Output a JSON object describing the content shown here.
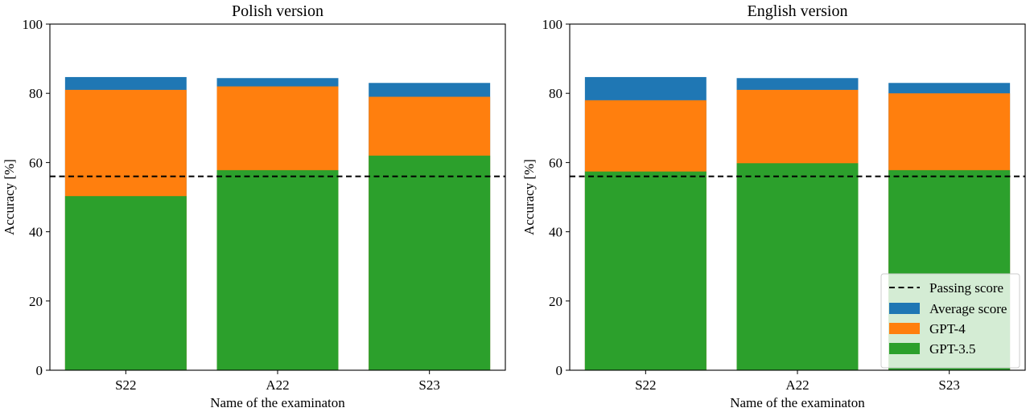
{
  "chart_data": [
    {
      "type": "bar",
      "stacked": "overlay",
      "title": "Polish version",
      "xlabel": "Name of the examinaton",
      "ylabel": "Accuracy [%]",
      "ylim": [
        0,
        100
      ],
      "yticks": [
        "0",
        "20",
        "40",
        "60",
        "80",
        "100"
      ],
      "categories": [
        "S22",
        "A22",
        "S23"
      ],
      "series": [
        {
          "name": "Average score",
          "color": "#1f77b4",
          "values": [
            84.7,
            84.4,
            83.0
          ]
        },
        {
          "name": "GPT-4",
          "color": "#ff7f0e",
          "values": [
            81.0,
            82.0,
            79.0
          ]
        },
        {
          "name": "GPT-3.5",
          "color": "#2ca02c",
          "values": [
            50.3,
            57.8,
            62.0
          ]
        }
      ],
      "passing_score": {
        "name": "Passing score",
        "value": 56
      },
      "legend": false,
      "grid": false
    },
    {
      "type": "bar",
      "stacked": "overlay",
      "title": "English version",
      "xlabel": "Name of the examinaton",
      "ylabel": "Accuracy [%]",
      "ylim": [
        0,
        100
      ],
      "yticks": [
        "0",
        "20",
        "40",
        "60",
        "80",
        "100"
      ],
      "categories": [
        "S22",
        "A22",
        "S23"
      ],
      "series": [
        {
          "name": "Average score",
          "color": "#1f77b4",
          "values": [
            84.7,
            84.4,
            83.0
          ]
        },
        {
          "name": "GPT-4",
          "color": "#ff7f0e",
          "values": [
            78.0,
            81.0,
            80.0
          ]
        },
        {
          "name": "GPT-3.5",
          "color": "#2ca02c",
          "values": [
            57.4,
            59.8,
            57.8
          ]
        }
      ],
      "passing_score": {
        "name": "Passing score",
        "value": 56
      },
      "legend": "lower-right",
      "grid": false
    }
  ]
}
